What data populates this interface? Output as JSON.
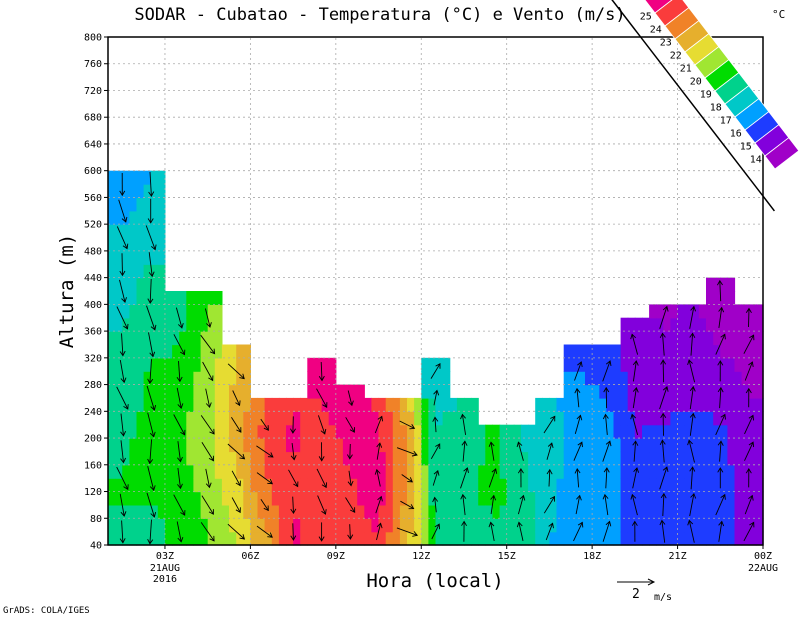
{
  "chart_data": {
    "type": "heatmap",
    "title": "SODAR - Cubatao - Temperatura (°C) e Vento (m/s)",
    "xlabel": "Hora (local)",
    "ylabel": "Altura (m)",
    "ylim": [
      40,
      800
    ],
    "yticks": [
      40,
      80,
      120,
      160,
      200,
      240,
      280,
      320,
      360,
      400,
      440,
      480,
      520,
      560,
      600,
      640,
      680,
      720,
      760,
      800
    ],
    "xlim_hours": [
      1,
      24
    ],
    "xticks": [
      {
        "hour": 3,
        "label": "03Z",
        "sub1": "21AUG",
        "sub2": "2016"
      },
      {
        "hour": 6,
        "label": "06Z"
      },
      {
        "hour": 9,
        "label": "09Z"
      },
      {
        "hour": 12,
        "label": "12Z"
      },
      {
        "hour": 15,
        "label": "15Z"
      },
      {
        "hour": 18,
        "label": "18Z"
      },
      {
        "hour": 21,
        "label": "21Z"
      },
      {
        "hour": 24,
        "label": "00Z",
        "sub1": "22AUG"
      }
    ],
    "grid": true,
    "colorbar": {
      "unit": "°C",
      "levels": [
        14,
        15,
        16,
        17,
        18,
        19,
        20,
        21,
        22,
        23,
        24,
        25
      ],
      "colors": [
        "#a000c8",
        "#8200dc",
        "#1e3cff",
        "#00a0ff",
        "#00c8c8",
        "#00d28c",
        "#00dc00",
        "#a0e632",
        "#e6dc32",
        "#e6af2d",
        "#f08228",
        "#fa3c3c",
        "#f00082"
      ],
      "placement": "top-right"
    },
    "profile_heights": [
      40,
      120,
      200,
      280,
      360,
      440,
      520,
      600
    ],
    "columns": [
      {
        "hour": 1,
        "top": 600,
        "temp": [
          18.5,
          19.2,
          18.6,
          18.2,
          18,
          17.6,
          17,
          16.2
        ],
        "wind": [
          0.3,
          -1.2
        ]
      },
      {
        "hour": 2,
        "top": 600,
        "temp": [
          18.2,
          19.3,
          19.6,
          19.2,
          18.6,
          18.2,
          17.6,
          17
        ],
        "wind": [
          0.2,
          -1.3
        ]
      },
      {
        "hour": 3,
        "top": 420,
        "temp": [
          19.4,
          19.6,
          19.7,
          19.4,
          18.8,
          18.6
        ],
        "wind": [
          0.3,
          -1.1
        ]
      },
      {
        "hour": 4,
        "top": 420,
        "temp": [
          19.8,
          20.3,
          20.8,
          20.6,
          20.2,
          19.8
        ],
        "wind": [
          0.5,
          -1.0
        ]
      },
      {
        "hour": 5,
        "top": 340,
        "temp": [
          21,
          21.6,
          22.4,
          22.2,
          22
        ],
        "wind": [
          0.6,
          -0.8
        ]
      },
      {
        "hour": 6,
        "top": 260,
        "temp": [
          22.5,
          23.8,
          24.3,
          24
        ],
        "wind": [
          0.7,
          -0.6
        ]
      },
      {
        "hour": 7,
        "top": 260,
        "temp": [
          25.3,
          24.8,
          25.2,
          24.8
        ],
        "wind": [
          0.2,
          -0.9
        ]
      },
      {
        "hour": 8,
        "top": 320,
        "temp": [
          24.4,
          24.2,
          24.6,
          25.2,
          25.6
        ],
        "wind": [
          0.3,
          -1.0
        ]
      },
      {
        "hour": 9,
        "top": 280,
        "temp": [
          24.6,
          24.8,
          25.3,
          25.4
        ],
        "wind": [
          0.2,
          -0.8
        ]
      },
      {
        "hour": 10,
        "top": 260,
        "temp": [
          24.8,
          25.6,
          25.2,
          24.6
        ],
        "wind": [
          0.1,
          0.9
        ]
      },
      {
        "hour": 11,
        "top": 260,
        "temp": [
          22.4,
          22.8,
          22.8,
          22.2
        ],
        "wind": [
          0.8,
          -0.4
        ]
      },
      {
        "hour": 12,
        "top": 320,
        "temp": [
          18.8,
          18.4,
          18.2,
          17.6,
          16.8
        ],
        "wind": [
          0.2,
          0.8
        ]
      },
      {
        "hour": 13,
        "top": 260,
        "temp": [
          18.6,
          18.3,
          18.2,
          18
        ],
        "wind": [
          0.1,
          1.1
        ]
      },
      {
        "hour": 14,
        "top": 220,
        "temp": [
          18.2,
          19.6,
          19.2
        ],
        "wind": [
          0.1,
          1.0
        ]
      },
      {
        "hour": 15,
        "top": 220,
        "temp": [
          19.2,
          18.3,
          18
        ],
        "wind": [
          0.0,
          1.0
        ]
      },
      {
        "hour": 16,
        "top": 260,
        "temp": [
          17,
          17.4,
          17.6,
          17.2
        ],
        "wind": [
          0.3,
          0.9
        ]
      },
      {
        "hour": 17,
        "top": 340,
        "temp": [
          16,
          16.2,
          16.4,
          16.2,
          15.5
        ],
        "wind": [
          0.2,
          1.0
        ]
      },
      {
        "hour": 18,
        "top": 340,
        "temp": [
          16.4,
          16.6,
          16.6,
          15.8,
          15.2
        ],
        "wind": [
          0.1,
          1.1
        ]
      },
      {
        "hour": 19,
        "top": 380,
        "temp": [
          15.5,
          15.3,
          15,
          14.7,
          14.3
        ],
        "wind": [
          0.0,
          1.1
        ]
      },
      {
        "hour": 20,
        "top": 400,
        "temp": [
          15.4,
          15.4,
          15.2,
          14.5,
          14,
          13.8
        ],
        "wind": [
          0.1,
          1.2
        ]
      },
      {
        "hour": 21,
        "top": 400,
        "temp": [
          15.2,
          15.4,
          15.4,
          14.8,
          14.2,
          13.8
        ],
        "wind": [
          0.0,
          1.2
        ]
      },
      {
        "hour": 22,
        "top": 440,
        "temp": [
          15.6,
          15.5,
          15.2,
          14.4,
          13.8,
          13.6
        ],
        "wind": [
          0.2,
          1.1
        ]
      },
      {
        "hour": 23,
        "top": 400,
        "temp": [
          14.5,
          14.6,
          14.4,
          13.9,
          13.6,
          13.5
        ],
        "wind": [
          0.3,
          1.0
        ]
      }
    ],
    "vector_reference": {
      "value": 2,
      "label": "2",
      "unit": "m/s"
    }
  },
  "footer": {
    "credit": "GrADS: COLA/IGES"
  }
}
